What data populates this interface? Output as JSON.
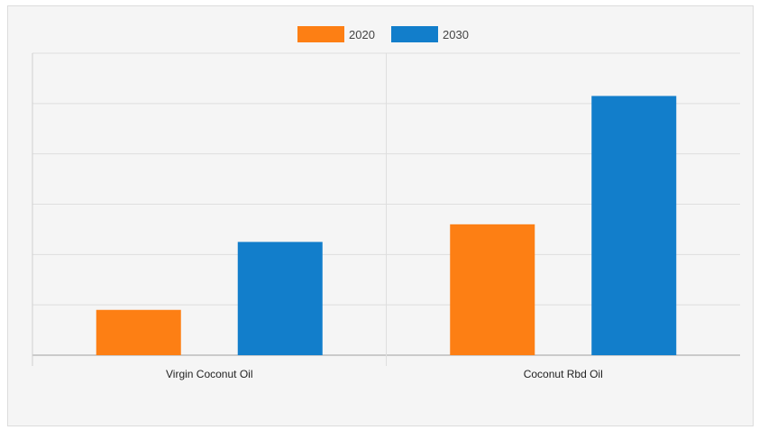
{
  "chart_data": {
    "type": "bar",
    "title": "",
    "xlabel": "",
    "ylabel": "",
    "categories": [
      "Virgin Coconut Oil",
      "Coconut Rbd Oil"
    ],
    "series": [
      {
        "name": "2020",
        "color": "#fd7f14",
        "values": [
          0.9,
          2.6
        ]
      },
      {
        "name": "2030",
        "color": "#127ecb",
        "values": [
          2.25,
          5.15
        ]
      }
    ],
    "ylim": [
      0,
      6
    ],
    "y_tick_count": 6,
    "y_tick_labels_visible": false,
    "grid": true,
    "legend_position": "top-center"
  }
}
